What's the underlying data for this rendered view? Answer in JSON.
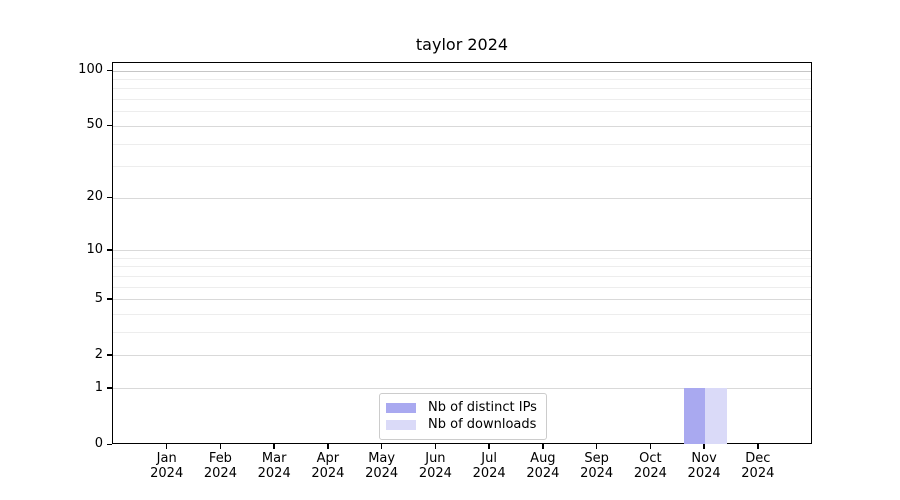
{
  "chart_data": {
    "type": "bar",
    "title": "taylor 2024",
    "xlabel": "",
    "ylabel": "",
    "x_tick_months": [
      "Jan",
      "Feb",
      "Mar",
      "Apr",
      "May",
      "Jun",
      "Jul",
      "Aug",
      "Sep",
      "Oct",
      "Nov",
      "Dec"
    ],
    "x_tick_year": "2024",
    "series": [
      {
        "name": "Nb of distinct IPs",
        "color": "#a9a9f0",
        "values": [
          0,
          0,
          0,
          0,
          0,
          0,
          0,
          0,
          0,
          0,
          1,
          0
        ]
      },
      {
        "name": "Nb of downloads",
        "color": "#dadaf8",
        "values": [
          0,
          0,
          0,
          0,
          0,
          0,
          0,
          0,
          0,
          0,
          1,
          0
        ]
      }
    ],
    "yscale": "log10(1+x)",
    "ylim": [
      0,
      110
    ],
    "y_tick_labels": [
      0,
      1,
      2,
      5,
      10,
      20,
      50,
      100
    ],
    "y_minor_gridlines": [
      3,
      4,
      6,
      7,
      8,
      9,
      30,
      40,
      60,
      70,
      80,
      90
    ],
    "grid": "horizontal",
    "legend_position": "lower center"
  },
  "colors": {
    "background": "#ffffff",
    "axis": "#000000",
    "major_grid": "#d9d9d9",
    "grid_100": "#c6c6c6",
    "minor_grid": "#ededed",
    "legend_border": "#cccccc",
    "text": "#000000"
  }
}
